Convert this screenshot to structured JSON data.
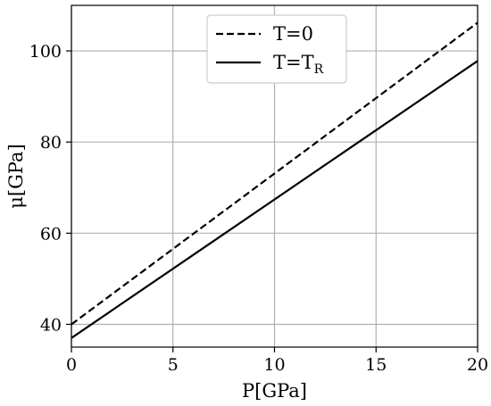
{
  "chart_data": {
    "type": "line",
    "xlabel": "P[GPa]",
    "ylabel": "μ[GPa]",
    "xlim": [
      0,
      20
    ],
    "ylim": [
      35,
      110
    ],
    "xticks": [
      0,
      5,
      10,
      15,
      20
    ],
    "yticks": [
      40,
      60,
      80,
      100
    ],
    "grid": true,
    "legend_position": "top-center",
    "series": [
      {
        "name": "T=0",
        "name_sub": "",
        "style": "dashed",
        "color": "#000000",
        "x": [
          0,
          20
        ],
        "y": [
          40,
          106.2
        ]
      },
      {
        "name": "T=T",
        "name_sub": "R",
        "style": "solid",
        "color": "#000000",
        "x": [
          0,
          20
        ],
        "y": [
          37,
          97.8
        ]
      }
    ]
  }
}
